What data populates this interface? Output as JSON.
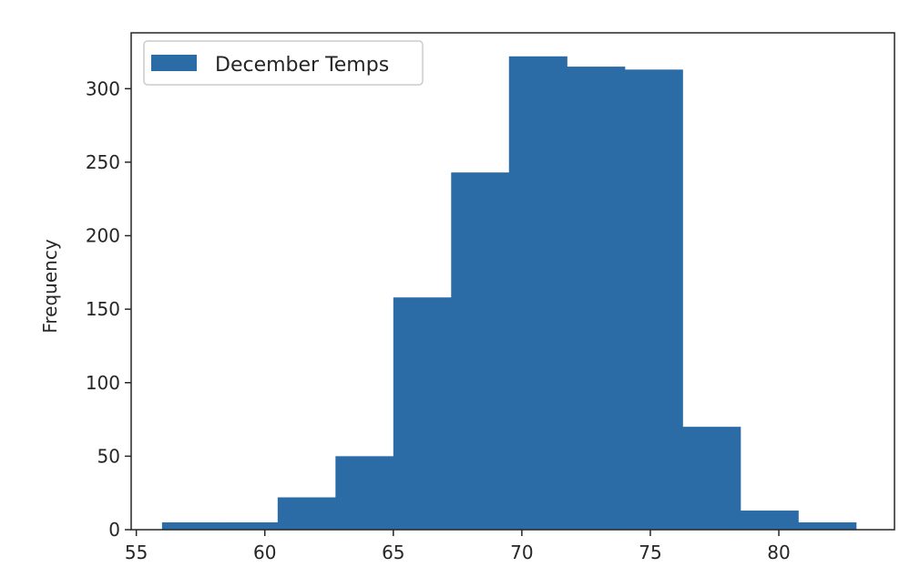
{
  "chart_data": {
    "type": "bar",
    "subtype": "histogram",
    "title": "",
    "xlabel": "",
    "ylabel": "Frequency",
    "bin_edges": [
      56.0,
      58.25,
      60.5,
      62.75,
      65.0,
      67.25,
      69.5,
      71.75,
      74.0,
      76.25,
      78.5,
      80.75,
      83.0
    ],
    "series": [
      {
        "name": "December Temps",
        "color": "#2b6ca6",
        "values": [
          5,
          5,
          22,
          50,
          158,
          243,
          322,
          315,
          313,
          70,
          13,
          5
        ]
      }
    ],
    "xlim": [
      54.8,
      84.5
    ],
    "ylim": [
      0,
      338
    ],
    "xticks": [
      55,
      60,
      65,
      70,
      75,
      80
    ],
    "yticks": [
      0,
      50,
      100,
      150,
      200,
      250,
      300
    ],
    "legend": {
      "position": "top-left",
      "entries": [
        "December Temps"
      ]
    },
    "grid": false
  }
}
